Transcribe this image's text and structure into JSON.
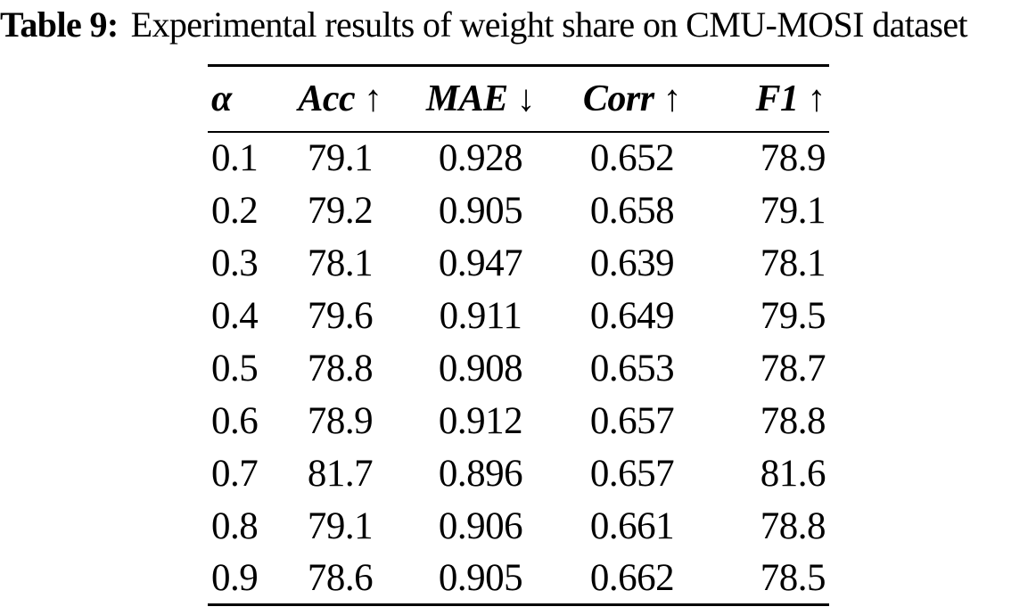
{
  "caption": {
    "label": "Table 9:",
    "text": "Experimental results of weight share on CMU-MOSI dataset"
  },
  "chart_data": {
    "type": "table",
    "title": "Experimental results of weight share on CMU-MOSI dataset",
    "columns": [
      "α",
      "Acc ↑",
      "MAE ↓",
      "Corr ↑",
      "F1 ↑"
    ],
    "column_keys": [
      "alpha",
      "acc",
      "mae",
      "corr",
      "f1"
    ],
    "rows": [
      [
        "0.1",
        "79.1",
        "0.928",
        "0.652",
        "78.9"
      ],
      [
        "0.2",
        "79.2",
        "0.905",
        "0.658",
        "79.1"
      ],
      [
        "0.3",
        "78.1",
        "0.947",
        "0.639",
        "78.1"
      ],
      [
        "0.4",
        "79.6",
        "0.911",
        "0.649",
        "79.5"
      ],
      [
        "0.5",
        "78.8",
        "0.908",
        "0.653",
        "78.7"
      ],
      [
        "0.6",
        "78.9",
        "0.912",
        "0.657",
        "78.8"
      ],
      [
        "0.7",
        "81.7",
        "0.896",
        "0.657",
        "81.6"
      ],
      [
        "0.8",
        "79.1",
        "0.906",
        "0.661",
        "78.8"
      ],
      [
        "0.9",
        "78.6",
        "0.905",
        "0.662",
        "78.5"
      ]
    ]
  }
}
